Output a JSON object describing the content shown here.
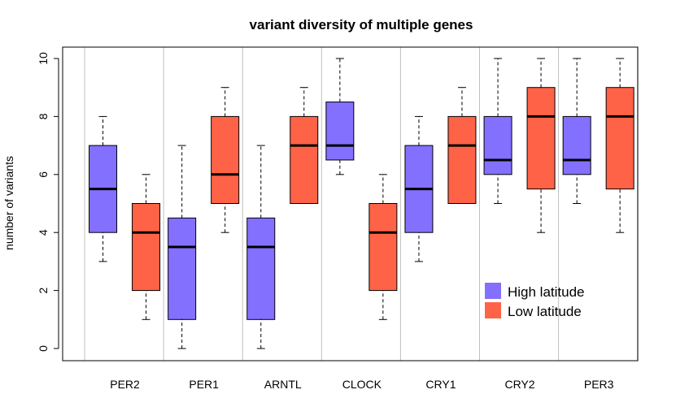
{
  "chart_data": {
    "type": "boxplot",
    "title": "variant diversity of multiple genes",
    "xlabel": "",
    "ylabel": "number of variants",
    "ylim": [
      0,
      10
    ],
    "yticks": [
      "0",
      "2",
      "4",
      "6",
      "8",
      "10"
    ],
    "categories": [
      "PER2",
      "PER1",
      "ARNTL",
      "CLOCK",
      "CRY1",
      "CRY2",
      "PER3"
    ],
    "grid": "vertical separators between gene groups",
    "legend_position": "bottom-right",
    "series": [
      {
        "name": "High latitude",
        "color": "#8470FF",
        "boxes": [
          {
            "min": 3,
            "q1": 4,
            "median": 5.5,
            "q3": 7,
            "max": 8
          },
          {
            "min": 0,
            "q1": 1,
            "median": 3.5,
            "q3": 4.5,
            "max": 7
          },
          {
            "min": 0,
            "q1": 1,
            "median": 3.5,
            "q3": 4.5,
            "max": 7
          },
          {
            "min": 6,
            "q1": 6.5,
            "median": 7,
            "q3": 8.5,
            "max": 10
          },
          {
            "min": 3,
            "q1": 4,
            "median": 5.5,
            "q3": 7,
            "max": 8
          },
          {
            "min": 5,
            "q1": 6,
            "median": 6.5,
            "q3": 8,
            "max": 10
          },
          {
            "min": 5,
            "q1": 6,
            "median": 6.5,
            "q3": 8,
            "max": 10
          }
        ]
      },
      {
        "name": "Low latitude",
        "color": "#FF6347",
        "boxes": [
          {
            "min": 1,
            "q1": 2,
            "median": 4,
            "q3": 5,
            "max": 6
          },
          {
            "min": 4,
            "q1": 5,
            "median": 6,
            "q3": 8,
            "max": 9
          },
          {
            "min": 5,
            "q1": 5,
            "median": 7,
            "q3": 8,
            "max": 9
          },
          {
            "min": 1,
            "q1": 2,
            "median": 4,
            "q3": 5,
            "max": 6
          },
          {
            "min": 5,
            "q1": 5,
            "median": 7,
            "q3": 8,
            "max": 9
          },
          {
            "min": 4,
            "q1": 5.5,
            "median": 8,
            "q3": 9,
            "max": 10
          },
          {
            "min": 4,
            "q1": 5.5,
            "median": 8,
            "q3": 9,
            "max": 10
          }
        ]
      }
    ]
  }
}
